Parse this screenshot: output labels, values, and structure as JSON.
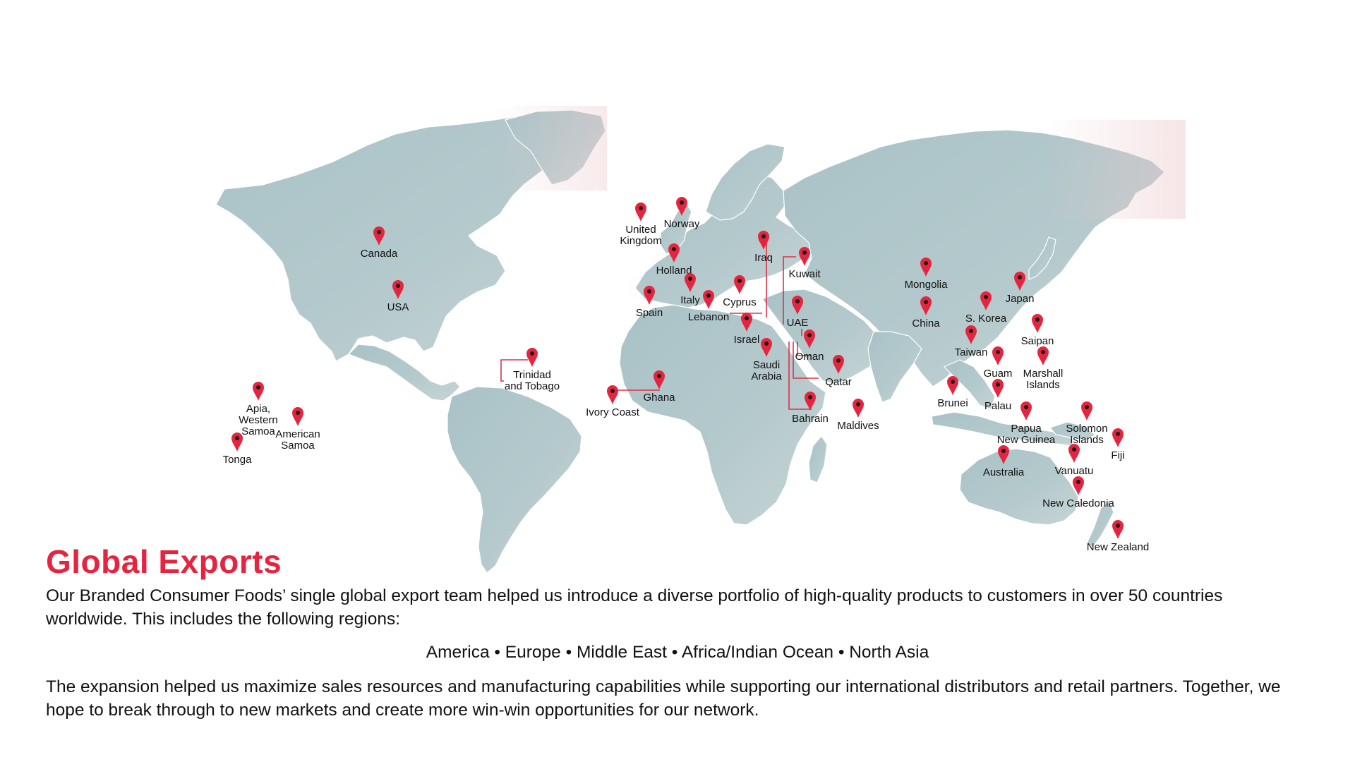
{
  "colors": {
    "accent": "#e5243f",
    "land_light": "#aec5c9",
    "land_tint": "#e9c4c7",
    "text": "#111111"
  },
  "icons": {
    "marker": "map-pin-icon",
    "map": "world-map"
  },
  "markers": [
    {
      "name": "canada",
      "label": "Canada"
    },
    {
      "name": "usa",
      "label": "USA"
    },
    {
      "name": "trinidad",
      "label": "Trinidad\nand Tobago"
    },
    {
      "name": "apia",
      "label": "Apia,\nWestern\nSamoa"
    },
    {
      "name": "american-samoa",
      "label": "American\nSamoa"
    },
    {
      "name": "tonga",
      "label": "Tonga"
    },
    {
      "name": "uk",
      "label": "United\nKingdom"
    },
    {
      "name": "norway",
      "label": "Norway"
    },
    {
      "name": "holland",
      "label": "Holland"
    },
    {
      "name": "spain",
      "label": "Spain"
    },
    {
      "name": "italy",
      "label": "Italy"
    },
    {
      "name": "lebanon",
      "label": "Lebanon"
    },
    {
      "name": "cyprus",
      "label": "Cyprus"
    },
    {
      "name": "israel",
      "label": "Israel"
    },
    {
      "name": "iraq",
      "label": "Iraq"
    },
    {
      "name": "kuwait",
      "label": "Kuwait"
    },
    {
      "name": "uae",
      "label": "UAE"
    },
    {
      "name": "oman",
      "label": "Oman"
    },
    {
      "name": "saudi-arabia",
      "label": "Saudi\nArabia"
    },
    {
      "name": "qatar",
      "label": "Qatar"
    },
    {
      "name": "bahrain",
      "label": "Bahrain"
    },
    {
      "name": "ivory-coast",
      "label": "Ivory Coast"
    },
    {
      "name": "ghana",
      "label": "Ghana"
    },
    {
      "name": "maldives",
      "label": "Maldives"
    },
    {
      "name": "mongolia",
      "label": "Mongolia"
    },
    {
      "name": "china",
      "label": "China"
    },
    {
      "name": "s-korea",
      "label": "S. Korea"
    },
    {
      "name": "japan",
      "label": "Japan"
    },
    {
      "name": "saipan",
      "label": "Saipan"
    },
    {
      "name": "taiwan",
      "label": "Taiwan"
    },
    {
      "name": "guam",
      "label": "Guam"
    },
    {
      "name": "marshall-islands",
      "label": "Marshall\nIslands"
    },
    {
      "name": "brunei",
      "label": "Brunei"
    },
    {
      "name": "palau",
      "label": "Palau"
    },
    {
      "name": "papua-new-guinea",
      "label": "Papua\nNew Guinea"
    },
    {
      "name": "solomon-islands",
      "label": "Solomon\nIslands"
    },
    {
      "name": "fiji",
      "label": "Fiji"
    },
    {
      "name": "australia",
      "label": "Australia"
    },
    {
      "name": "vanuatu",
      "label": "Vanuatu"
    },
    {
      "name": "new-caledonia",
      "label": "New Caledonia"
    },
    {
      "name": "new-zealand",
      "label": "New Zealand"
    }
  ],
  "content": {
    "title": "Global Exports",
    "paragraph1": "Our Branded Consumer Foods’ single global export team helped us introduce a diverse portfolio of high-quality products to customers in over 50 countries worldwide. This includes the following regions:",
    "regions": "America • Europe • Middle East • Africa/Indian Ocean • North Asia",
    "paragraph2": "The expansion helped us maximize sales resources and manufacturing capabilities while supporting our international distributors and retail partners. Together, we hope to break through to new markets and create more win-win opportunities for our network."
  }
}
